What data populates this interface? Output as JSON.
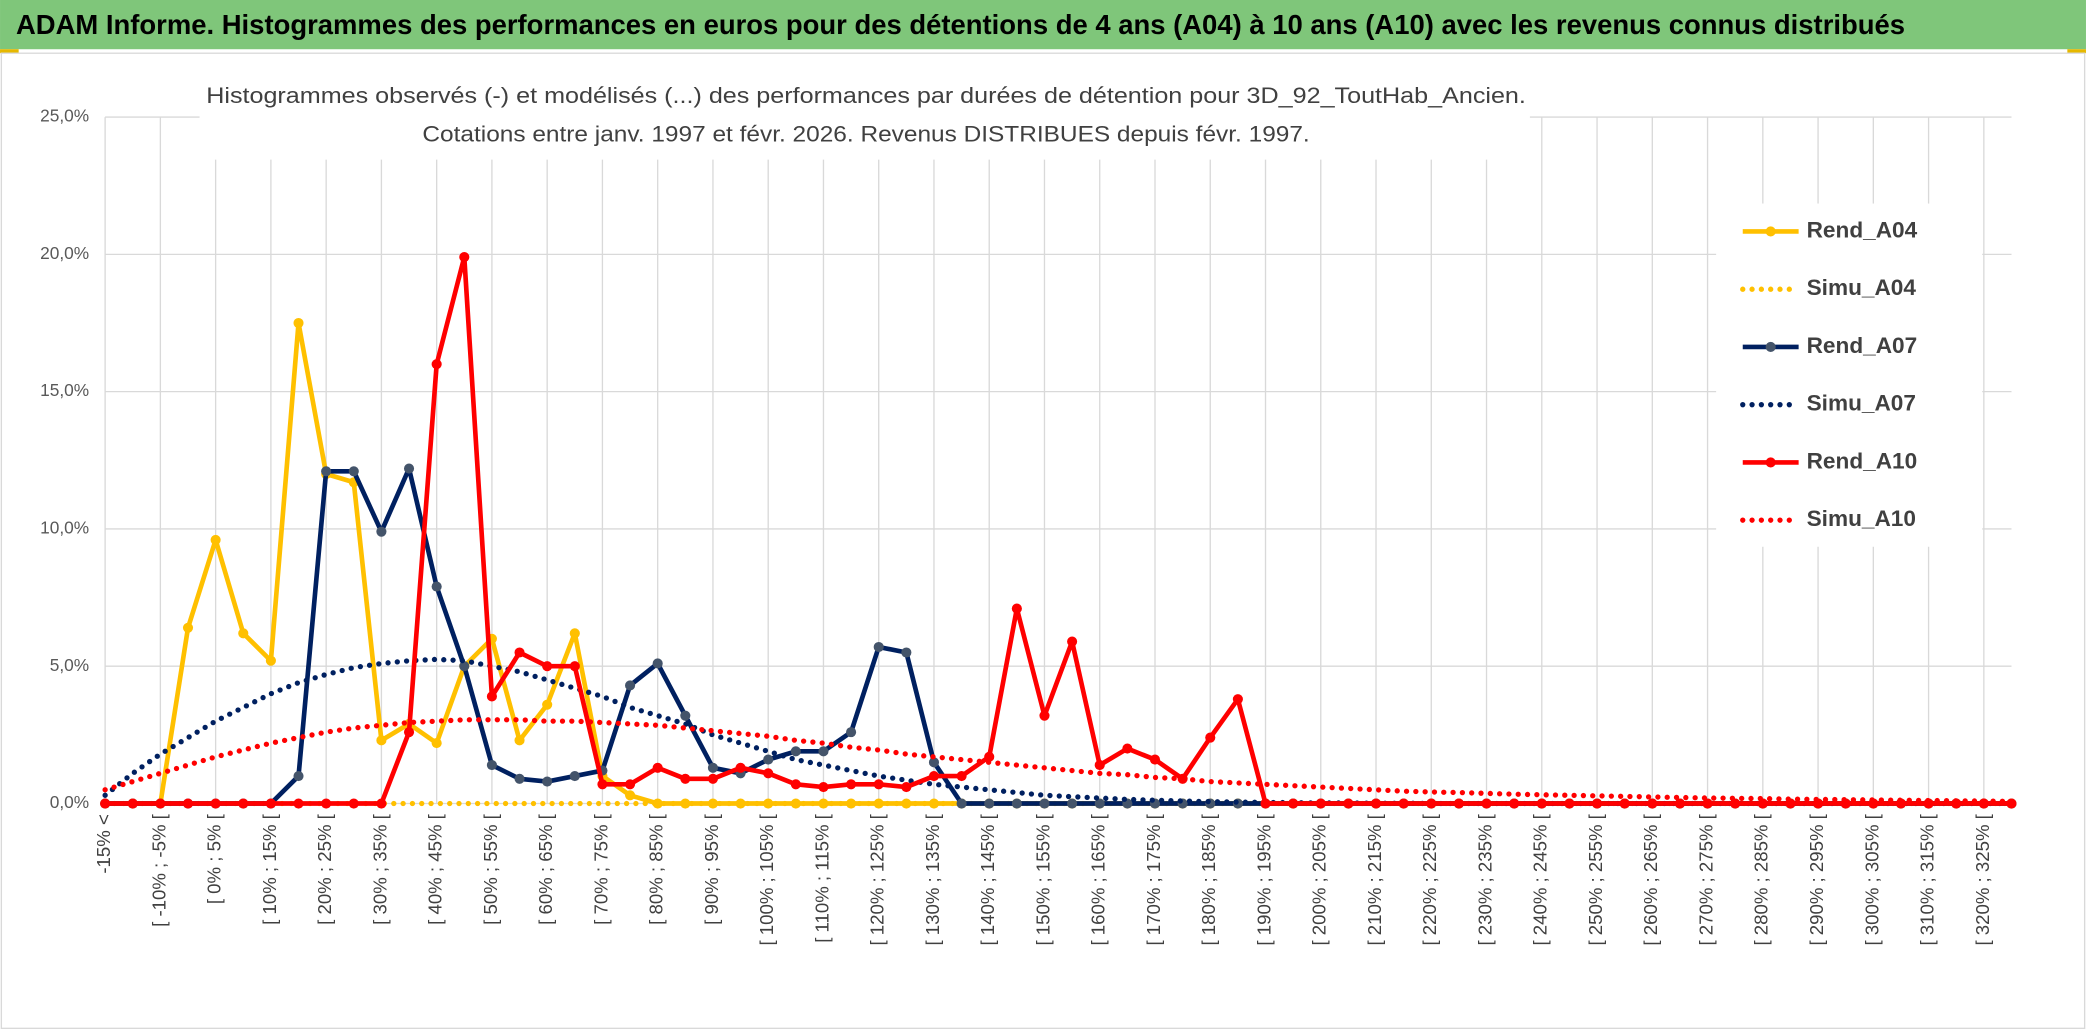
{
  "header": {
    "title": "ADAM Informe. Histogrammes des performances en euros pour des détentions de 4 ans (A04) à 10 ans (A10) avec les revenus connus distribués"
  },
  "chart_data": {
    "type": "line",
    "title": "Histogrammes observés (-) et modélisés (...) des performances par durées de détention pour 3D_92_ToutHab_Ancien.",
    "subtitle": "Cotations entre janv. 1997 et févr. 2026. Revenus DISTRIBUES depuis févr. 1997.",
    "categories": [
      "-15% <",
      null,
      "[ -10% ; -5% [",
      null,
      "[ 0% ; 5% [",
      null,
      "[ 10% ; 15% [",
      null,
      "[ 20% ; 25% [",
      null,
      "[ 30% ; 35% [",
      null,
      "[ 40% ; 45% [",
      null,
      "[ 50% ; 55% [",
      null,
      "[ 60% ; 65% [",
      null,
      "[ 70% ; 75% [",
      null,
      "[ 80% ; 85% [",
      null,
      "[ 90% ; 95% [",
      null,
      "[ 100% ; 105% [",
      null,
      "[ 110% ; 115% [",
      null,
      "[ 120% ; 125% [",
      null,
      "[ 130% ; 135% [",
      null,
      "[ 140% ; 145% [",
      null,
      "[ 150% ; 155% [",
      null,
      "[ 160% ; 165% [",
      null,
      "[ 170% ; 175% [",
      null,
      "[ 180% ; 185% [",
      null,
      "[ 190% ; 195% [",
      null,
      "[ 200% ; 205% [",
      null,
      "[ 210% ; 215% [",
      null,
      "[ 220% ; 225% [",
      null,
      "[ 230% ; 235% [",
      null,
      "[ 240% ; 245% [",
      null,
      "[ 250% ; 255% [",
      null,
      "[ 260% ; 265% [",
      null,
      "[ 270% ; 275% [",
      null,
      "[ 280% ; 285% [",
      null,
      "[ 290% ; 295% [",
      null,
      "[ 300% ; 305% [",
      null,
      "[ 310% ; 315% [",
      null,
      "[ 320% ; 325% [",
      null
    ],
    "ylim": [
      0,
      25
    ],
    "yticks": [
      {
        "value": 0,
        "label": "0,0%"
      },
      {
        "value": 5,
        "label": "5,0%"
      },
      {
        "value": 10,
        "label": "10,0%"
      },
      {
        "value": 15,
        "label": "15,0%"
      },
      {
        "value": 20,
        "label": "20,0%"
      },
      {
        "value": 25,
        "label": "25,0%"
      }
    ],
    "grid": true,
    "legend": "right",
    "series": [
      {
        "name": "Rend_A04",
        "color": "#ffc000",
        "marker_color": "#ffc000",
        "style": "solid",
        "markers": true,
        "values": [
          0,
          0,
          0,
          6.4,
          9.6,
          6.2,
          5.2,
          17.5,
          12.0,
          11.7,
          2.3,
          2.9,
          2.2,
          5.0,
          6.0,
          2.3,
          3.6,
          6.2,
          1.0,
          0.3,
          0,
          0,
          0,
          0,
          0,
          0,
          0,
          0,
          0,
          0,
          0,
          0,
          0,
          0,
          0,
          0,
          0,
          0,
          0,
          0,
          0,
          0,
          0,
          0,
          0,
          0,
          0,
          0,
          0,
          0,
          0,
          0,
          0,
          0,
          0,
          0,
          0,
          0,
          0,
          0,
          0,
          0,
          0,
          0,
          0,
          0,
          0,
          0,
          0,
          0
        ]
      },
      {
        "name": "Simu_A04",
        "color": "#ffc000",
        "style": "dotted",
        "markers": false,
        "values": [
          0,
          0,
          0,
          0,
          0,
          0,
          0,
          0,
          0,
          0,
          0,
          0,
          0,
          0,
          0,
          0,
          0,
          0,
          0,
          0,
          0,
          0,
          0,
          0,
          0,
          0,
          0,
          0,
          0,
          0,
          0,
          0,
          0,
          0,
          0,
          0,
          0,
          0,
          0,
          0,
          0,
          0,
          0,
          0,
          0,
          0,
          0,
          0,
          0,
          0,
          0,
          0,
          0,
          0,
          0,
          0,
          0,
          0,
          0,
          0,
          0,
          0,
          0,
          0,
          0,
          0,
          0,
          0,
          0,
          0
        ]
      },
      {
        "name": "Rend_A07",
        "color": "#002060",
        "marker_color": "#44546a",
        "style": "solid",
        "markers": true,
        "values": [
          0,
          0,
          0,
          0,
          0,
          0,
          0,
          1.0,
          12.1,
          12.1,
          9.9,
          12.2,
          7.9,
          5.0,
          1.4,
          0.9,
          0.8,
          1.0,
          1.2,
          4.3,
          5.1,
          3.2,
          1.3,
          1.1,
          1.6,
          1.9,
          1.9,
          2.6,
          5.7,
          5.5,
          1.5,
          0,
          0,
          0,
          0,
          0,
          0,
          0,
          0,
          0,
          0,
          0,
          0,
          0,
          0,
          0,
          0,
          0,
          0,
          0,
          0,
          0,
          0,
          0,
          0,
          0,
          0,
          0,
          0,
          0,
          0,
          0,
          0,
          0,
          0,
          0,
          0,
          0,
          0,
          0
        ]
      },
      {
        "name": "Simu_A07",
        "color": "#002060",
        "style": "dotted",
        "markers": false,
        "values": [
          0.3,
          1.1,
          1.8,
          2.4,
          3.0,
          3.5,
          4.0,
          4.4,
          4.7,
          4.95,
          5.1,
          5.2,
          5.25,
          5.2,
          5.0,
          4.8,
          4.5,
          4.2,
          3.9,
          3.5,
          3.2,
          2.9,
          2.5,
          2.2,
          1.9,
          1.6,
          1.4,
          1.2,
          1.0,
          0.85,
          0.7,
          0.6,
          0.5,
          0.4,
          0.3,
          0.25,
          0.2,
          0.15,
          0.12,
          0.09,
          0.07,
          0.05,
          0.04,
          0.03,
          0.02,
          0.02,
          0.01,
          0.01,
          0,
          0,
          0,
          0,
          0,
          0,
          0,
          0,
          0,
          0,
          0,
          0,
          0,
          0,
          0,
          0,
          0,
          0,
          0,
          0,
          0,
          0
        ]
      },
      {
        "name": "Rend_A10",
        "color": "#ff0000",
        "marker_color": "#ff0000",
        "style": "solid",
        "markers": true,
        "values": [
          0,
          0,
          0,
          0,
          0,
          0,
          0,
          0,
          0,
          0,
          0,
          2.6,
          16.0,
          19.9,
          3.9,
          5.5,
          5.0,
          5.0,
          0.7,
          0.7,
          1.3,
          0.9,
          0.9,
          1.3,
          1.1,
          0.7,
          0.6,
          0.7,
          0.7,
          0.6,
          1.0,
          1.0,
          1.7,
          7.1,
          3.2,
          5.9,
          1.4,
          2.0,
          1.6,
          0.9,
          2.4,
          3.8,
          0,
          0,
          0,
          0,
          0,
          0,
          0,
          0,
          0,
          0,
          0,
          0,
          0,
          0,
          0,
          0,
          0,
          0,
          0,
          0,
          0,
          0,
          0,
          0,
          0,
          0,
          0,
          0
        ]
      },
      {
        "name": "Simu_A10",
        "color": "#ff0000",
        "style": "dotted",
        "markers": false,
        "values": [
          0.5,
          0.8,
          1.1,
          1.4,
          1.7,
          1.95,
          2.2,
          2.4,
          2.6,
          2.75,
          2.85,
          2.95,
          3.0,
          3.05,
          3.05,
          3.05,
          3.0,
          3.0,
          2.95,
          2.9,
          2.85,
          2.75,
          2.65,
          2.55,
          2.45,
          2.3,
          2.2,
          2.05,
          1.95,
          1.8,
          1.7,
          1.6,
          1.5,
          1.4,
          1.3,
          1.2,
          1.1,
          1.05,
          0.95,
          0.9,
          0.8,
          0.75,
          0.7,
          0.65,
          0.6,
          0.55,
          0.5,
          0.45,
          0.42,
          0.4,
          0.37,
          0.34,
          0.32,
          0.3,
          0.28,
          0.26,
          0.24,
          0.22,
          0.2,
          0.19,
          0.18,
          0.16,
          0.15,
          0.14,
          0.13,
          0.12,
          0.11,
          0.1,
          0.09,
          0.08
        ]
      }
    ]
  }
}
